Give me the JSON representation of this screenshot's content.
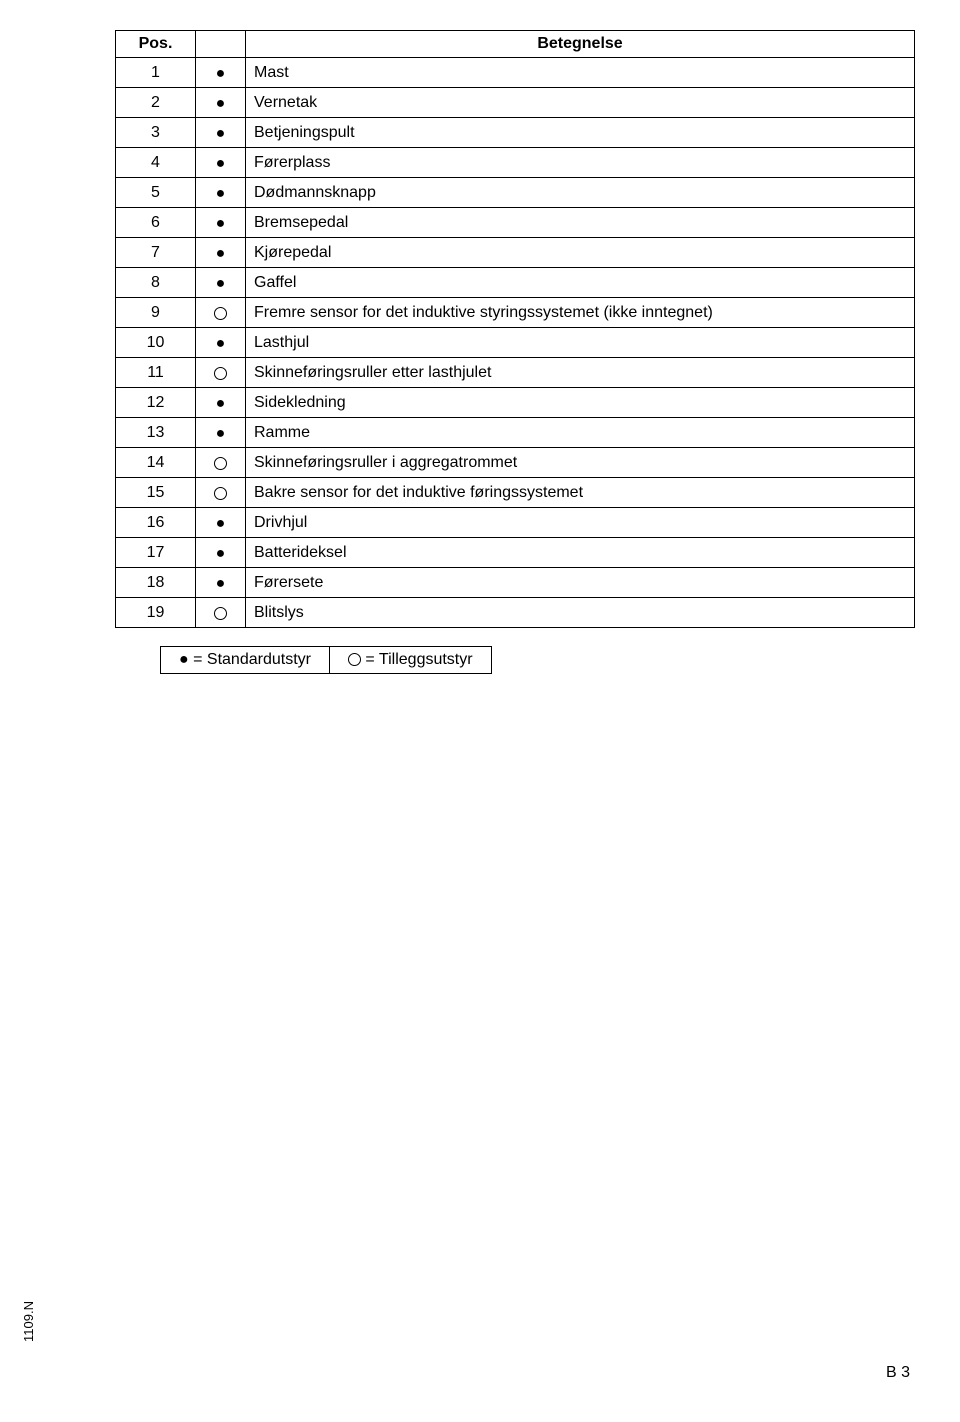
{
  "table": {
    "headers": {
      "pos": "Pos.",
      "label": "Betegnelse"
    },
    "rows": [
      {
        "pos": "1",
        "symbol": "●",
        "label": "Mast"
      },
      {
        "pos": "2",
        "symbol": "●",
        "label": "Vernetak"
      },
      {
        "pos": "3",
        "symbol": "●",
        "label": "Betjeningspult"
      },
      {
        "pos": "4",
        "symbol": "●",
        "label": "Førerplass"
      },
      {
        "pos": "5",
        "symbol": "●",
        "label": "Dødmannsknapp"
      },
      {
        "pos": "6",
        "symbol": "●",
        "label": "Bremsepedal"
      },
      {
        "pos": "7",
        "symbol": "●",
        "label": "Kjørepedal"
      },
      {
        "pos": "8",
        "symbol": "●",
        "label": "Gaffel"
      },
      {
        "pos": "9",
        "symbol": "○",
        "label": "Fremre sensor for det induktive styringssystemet (ikke inntegnet)"
      },
      {
        "pos": "10",
        "symbol": "●",
        "label": "Lasthjul"
      },
      {
        "pos": "11",
        "symbol": "○",
        "label": "Skinneføringsruller etter lasthjulet"
      },
      {
        "pos": "12",
        "symbol": "●",
        "label": "Sidekledning"
      },
      {
        "pos": "13",
        "symbol": "●",
        "label": "Ramme"
      },
      {
        "pos": "14",
        "symbol": "○",
        "label": "Skinneføringsruller i aggregatrommet"
      },
      {
        "pos": "15",
        "symbol": "○",
        "label": "Bakre sensor for det induktive føringssystemet"
      },
      {
        "pos": "16",
        "symbol": "●",
        "label": "Drivhjul"
      },
      {
        "pos": "17",
        "symbol": "●",
        "label": "Batterideksel"
      },
      {
        "pos": "18",
        "symbol": "●",
        "label": "Førersete"
      },
      {
        "pos": "19",
        "symbol": "○",
        "label": "Blitslys"
      }
    ]
  },
  "legend": {
    "standard": "● = Standardutstyr",
    "optional": "○ = Tilleggsutstyr"
  },
  "footer": {
    "left": "1109.N",
    "right": "B 3"
  },
  "colors": {
    "text": "#000000",
    "background": "#ffffff",
    "border": "#000000"
  },
  "typography": {
    "body_font": "Arial",
    "body_size_pt": 12,
    "footer_size_pt": 10
  }
}
